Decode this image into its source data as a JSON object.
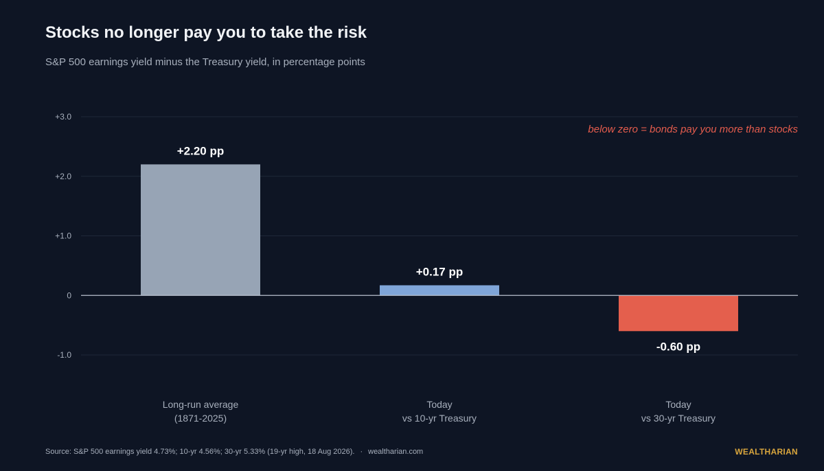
{
  "header": {
    "title": "Stocks no longer pay you to take the risk",
    "subtitle": "S&P 500 earnings yield minus the Treasury yield, in percentage points"
  },
  "annotation": "below zero = bonds pay you more than stocks",
  "footer": {
    "source": "Source: S&P 500 earnings yield 4.73%; 10-yr 4.56%; 30-yr 5.33% (19-yr high, 18 Aug 2026).",
    "separator": "·",
    "site": "wealtharian.com",
    "brand": "WEALTHARIAN"
  },
  "colors": {
    "background": "#0e1524",
    "grid": "#1f2838",
    "baseline": "#b8c0cc",
    "tick": "#a7afbc",
    "annotation": "#e45c4d",
    "brand": "#d8a53d"
  },
  "chart_data": {
    "type": "bar",
    "title": "Stocks no longer pay you to take the risk",
    "subtitle": "S&P 500 earnings yield minus the Treasury yield, in percentage points",
    "categories": [
      [
        "Long-run average",
        "(1871-2025)"
      ],
      [
        "Today",
        "vs 10-yr Treasury"
      ],
      [
        "Today",
        "vs 30-yr Treasury"
      ]
    ],
    "values": [
      2.2,
      0.17,
      -0.6
    ],
    "data_labels": [
      "+2.20 pp",
      "+0.17 pp",
      "-0.60 pp"
    ],
    "bar_colors": [
      "#97a4b5",
      "#7fa5d8",
      "#e45f4d"
    ],
    "ylim": [
      -1.0,
      3.0
    ],
    "yticks": [
      {
        "value": 3,
        "label": "+3.0"
      },
      {
        "value": 2,
        "label": "+2.0"
      },
      {
        "value": 1,
        "label": "+1.0"
      },
      {
        "value": 0,
        "label": "0"
      },
      {
        "value": -1,
        "label": "-1.0"
      }
    ],
    "grid": true,
    "legend": "none"
  }
}
